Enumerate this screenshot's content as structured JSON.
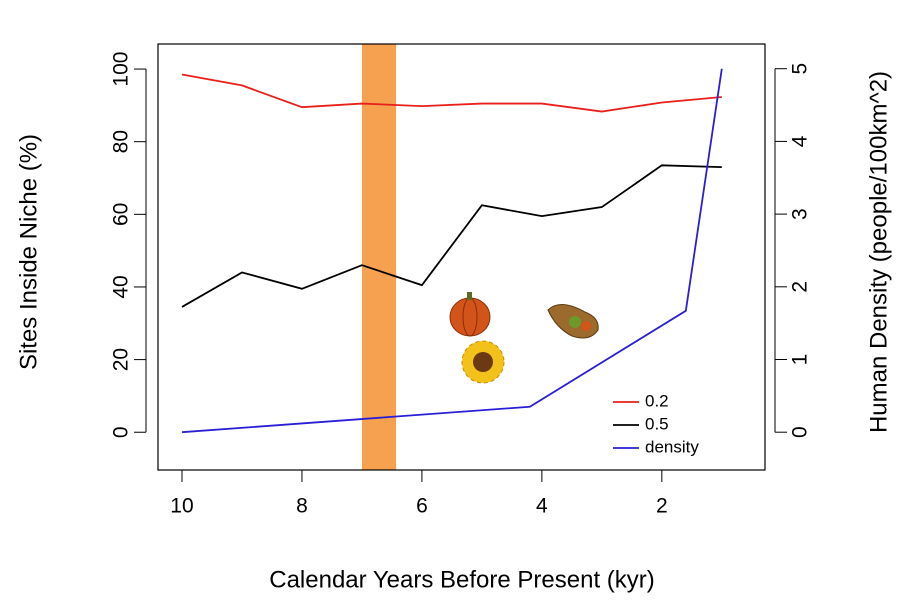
{
  "chart_data": {
    "type": "line",
    "xlabel": "Calendar Years Before Present (kyr)",
    "ylabel": "Sites Inside Niche (%)",
    "y2label": "Human Density (people/100km^2)",
    "xlim": [
      10.4,
      0.28
    ],
    "xticks": [
      10,
      8,
      6,
      4,
      2
    ],
    "ylim": [
      -10.4,
      106.9
    ],
    "yticks": [
      0,
      20,
      40,
      60,
      80,
      100
    ],
    "y2lim": [
      -0.52,
      5.34
    ],
    "y2ticks": [
      0,
      1,
      2,
      3,
      4,
      5
    ],
    "highlight": {
      "x": [
        7,
        6.43
      ],
      "color": "#f5a150"
    },
    "legend": "bottomright",
    "series": [
      {
        "name": "0.2",
        "color": "#e8201c",
        "x": [
          10,
          9,
          8,
          7,
          6,
          5,
          4,
          3,
          2,
          1
        ],
        "values": [
          98.5,
          95.5,
          89.5,
          90.5,
          89.8,
          90.5,
          90.5,
          88.3,
          90.8,
          92.3
        ]
      },
      {
        "name": "0.5",
        "color": "#000000",
        "x": [
          10,
          9,
          8,
          7,
          6,
          5,
          4,
          3,
          2,
          1
        ],
        "values": [
          34.5,
          44,
          39.5,
          46,
          40.5,
          62.5,
          59.5,
          62,
          73.5,
          73
        ]
      },
      {
        "name": "density",
        "color": "#2a1fd6",
        "axis": "y2",
        "x": [
          10,
          4.2,
          1.6,
          1
        ],
        "values": [
          0,
          0.35,
          1.67,
          5
        ]
      }
    ]
  }
}
